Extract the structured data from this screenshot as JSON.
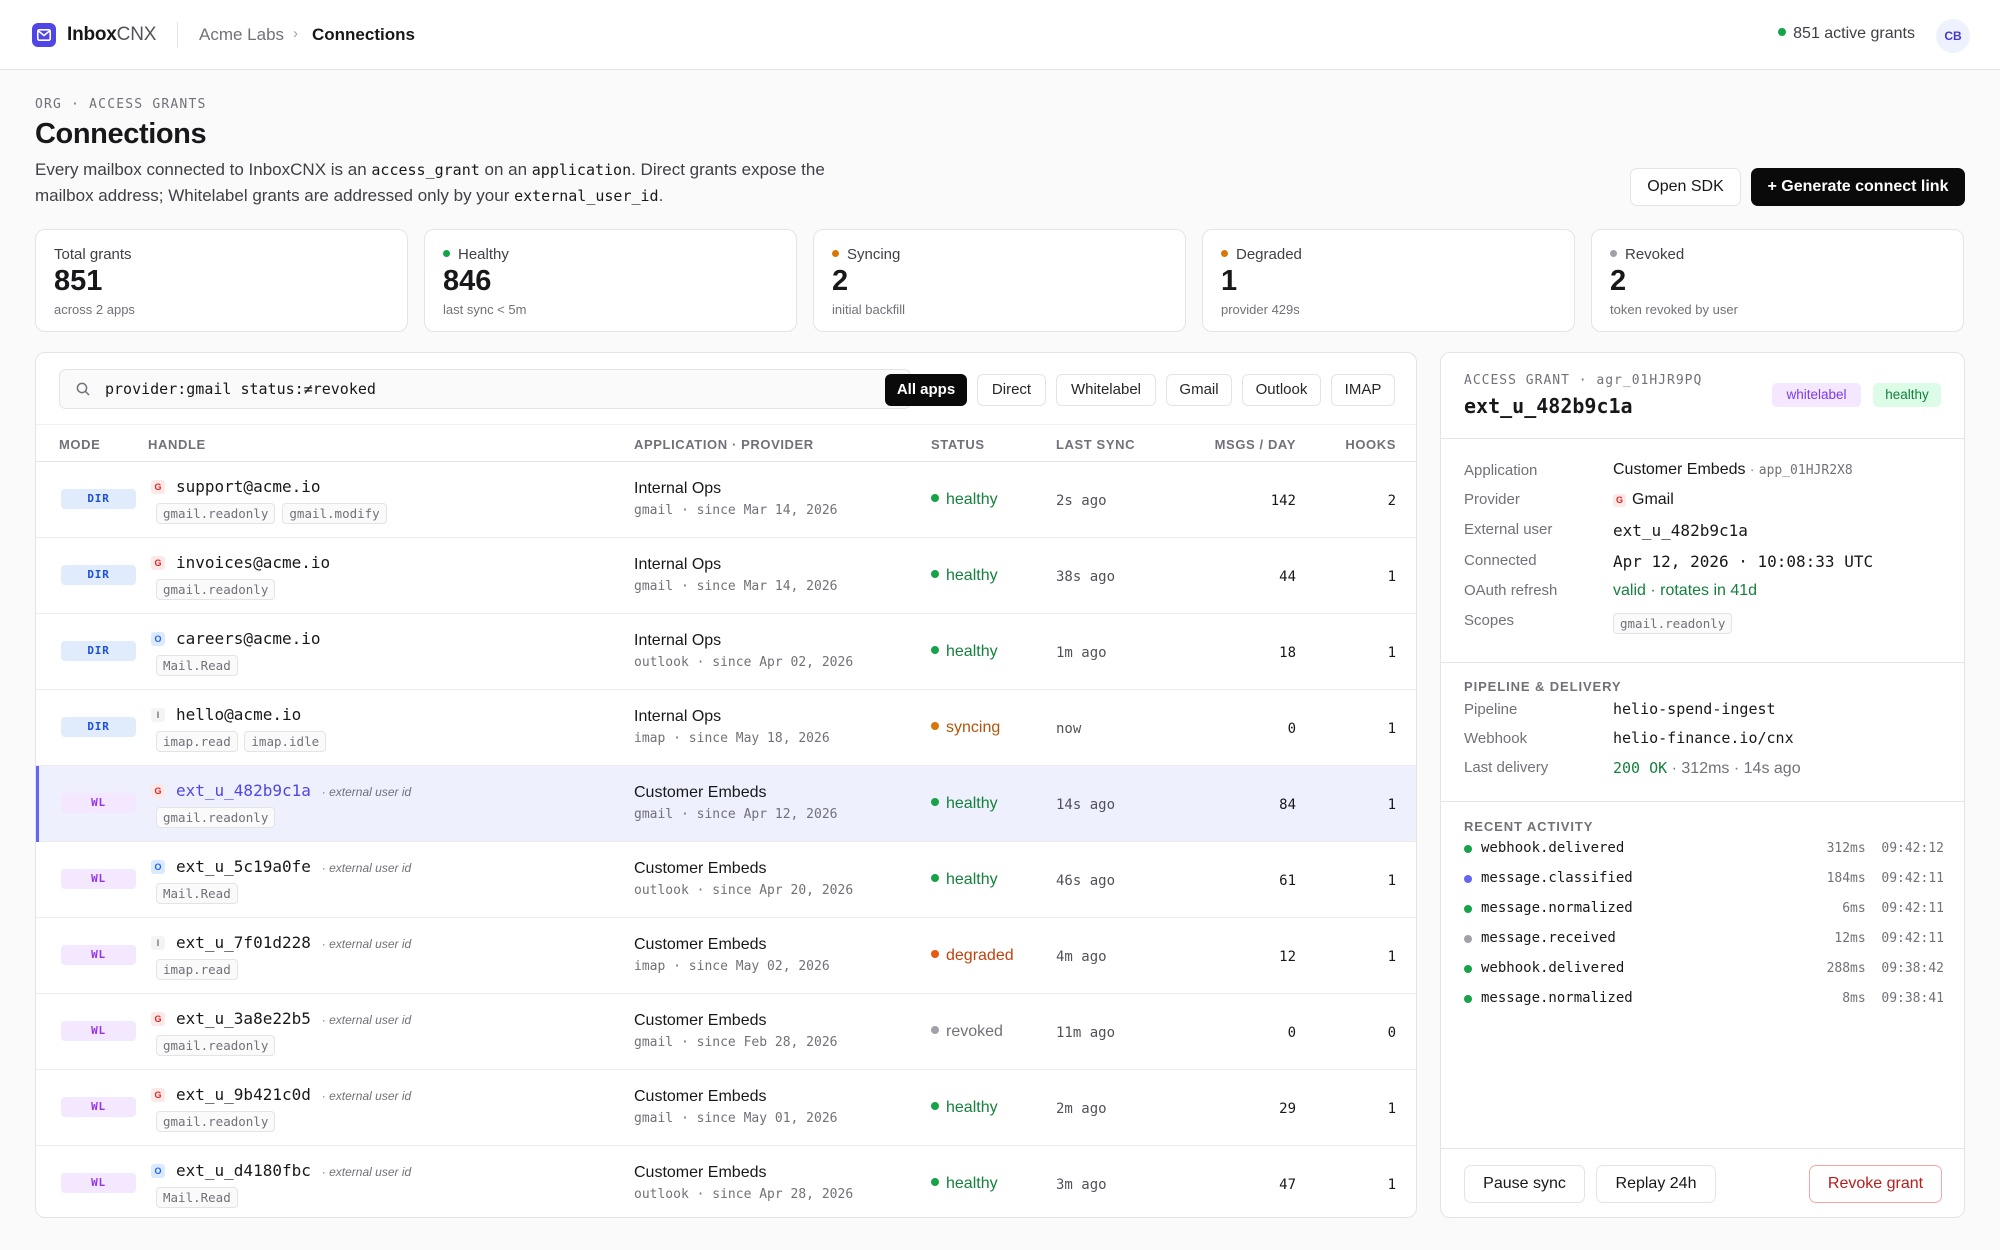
{
  "topbar": {
    "brand_bold": "Inbox",
    "brand_light": "CNX",
    "org": "Acme Labs",
    "current": "Connections",
    "active_grants": "851 active grants",
    "avatar": "CB"
  },
  "header": {
    "eyebrow": "ORG · ACCESS GRANTS",
    "title": "Connections",
    "desc_1": "Every mailbox connected to InboxCNX is an ",
    "desc_code_1": "access_grant",
    "desc_2": " on an ",
    "desc_code_2": "application",
    "desc_3": ". Direct grants expose the mailbox address; Whitelabel grants are addressed only by your ",
    "desc_code_3": "external_user_id",
    "desc_4": ".",
    "open_sdk": "Open SDK",
    "generate": "+ Generate connect link"
  },
  "stats": [
    {
      "label": "Total grants",
      "value": "851",
      "sub": "across 2 apps",
      "dot": ""
    },
    {
      "label": "Healthy",
      "value": "846",
      "sub": "last sync < 5m",
      "dot": "#16a34a"
    },
    {
      "label": "Syncing",
      "value": "2",
      "sub": "initial backfill",
      "dot": "#d97706"
    },
    {
      "label": "Degraded",
      "value": "1",
      "sub": "provider 429s",
      "dot": "#d97706"
    },
    {
      "label": "Revoked",
      "value": "2",
      "sub": "token revoked by user",
      "dot": "#a1a1aa"
    }
  ],
  "search": {
    "query": "provider:gmail status:≠revoked"
  },
  "filters": [
    "All apps",
    "Direct",
    "Whitelabel",
    "Gmail",
    "Outlook",
    "IMAP"
  ],
  "columns": [
    "MODE",
    "HANDLE",
    "APPLICATION · PROVIDER",
    "STATUS",
    "LAST SYNC",
    "MSGS / DAY",
    "HOOKS"
  ],
  "rows": [
    {
      "mode": "DIR",
      "prov": "G",
      "handle": "support@acme.io",
      "ext": "",
      "scopes": [
        "gmail.readonly",
        "gmail.modify"
      ],
      "app": "Internal Ops",
      "app_sub": "gmail · since Mar 14, 2026",
      "status": "healthy",
      "last_sync": "2s ago",
      "msgs": "142",
      "hooks": "2"
    },
    {
      "mode": "DIR",
      "prov": "G",
      "handle": "invoices@acme.io",
      "ext": "",
      "scopes": [
        "gmail.readonly"
      ],
      "app": "Internal Ops",
      "app_sub": "gmail · since Mar 14, 2026",
      "status": "healthy",
      "last_sync": "38s ago",
      "msgs": "44",
      "hooks": "1"
    },
    {
      "mode": "DIR",
      "prov": "O",
      "handle": "careers@acme.io",
      "ext": "",
      "scopes": [
        "Mail.Read"
      ],
      "app": "Internal Ops",
      "app_sub": "outlook · since Apr 02, 2026",
      "status": "healthy",
      "last_sync": "1m ago",
      "msgs": "18",
      "hooks": "1"
    },
    {
      "mode": "DIR",
      "prov": "I",
      "handle": "hello@acme.io",
      "ext": "",
      "scopes": [
        "imap.read",
        "imap.idle"
      ],
      "app": "Internal Ops",
      "app_sub": "imap · since May 18, 2026",
      "status": "syncing",
      "last_sync": "now",
      "msgs": "0",
      "hooks": "1"
    },
    {
      "mode": "WL",
      "prov": "G",
      "handle": "ext_u_482b9c1a",
      "ext": "· external user id",
      "scopes": [
        "gmail.readonly"
      ],
      "app": "Customer Embeds",
      "app_sub": "gmail · since Apr 12, 2026",
      "status": "healthy",
      "last_sync": "14s ago",
      "msgs": "84",
      "hooks": "1",
      "selected": true
    },
    {
      "mode": "WL",
      "prov": "O",
      "handle": "ext_u_5c19a0fe",
      "ext": "· external user id",
      "scopes": [
        "Mail.Read"
      ],
      "app": "Customer Embeds",
      "app_sub": "outlook · since Apr 20, 2026",
      "status": "healthy",
      "last_sync": "46s ago",
      "msgs": "61",
      "hooks": "1"
    },
    {
      "mode": "WL",
      "prov": "I",
      "handle": "ext_u_7f01d228",
      "ext": "· external user id",
      "scopes": [
        "imap.read"
      ],
      "app": "Customer Embeds",
      "app_sub": "imap · since May 02, 2026",
      "status": "degraded",
      "last_sync": "4m ago",
      "msgs": "12",
      "hooks": "1"
    },
    {
      "mode": "WL",
      "prov": "G",
      "handle": "ext_u_3a8e22b5",
      "ext": "· external user id",
      "scopes": [
        "gmail.readonly"
      ],
      "app": "Customer Embeds",
      "app_sub": "gmail · since Feb 28, 2026",
      "status": "revoked",
      "last_sync": "11m ago",
      "msgs": "0",
      "hooks": "0"
    },
    {
      "mode": "WL",
      "prov": "G",
      "handle": "ext_u_9b421c0d",
      "ext": "· external user id",
      "scopes": [
        "gmail.readonly"
      ],
      "app": "Customer Embeds",
      "app_sub": "gmail · since May 01, 2026",
      "status": "healthy",
      "last_sync": "2m ago",
      "msgs": "29",
      "hooks": "1"
    },
    {
      "mode": "WL",
      "prov": "O",
      "handle": "ext_u_d4180fbc",
      "ext": "· external user id",
      "scopes": [
        "Mail.Read"
      ],
      "app": "Customer Embeds",
      "app_sub": "outlook · since Apr 28, 2026",
      "status": "healthy",
      "last_sync": "3m ago",
      "msgs": "47",
      "hooks": "1"
    }
  ],
  "panel": {
    "eyebrow": "ACCESS GRANT · agr_01HJR9PQ",
    "title": "ext_u_482b9c1a",
    "tag_mode": "whitelabel",
    "tag_status": "healthy",
    "application_label": "Application",
    "application": "Customer Embeds",
    "application_id": "app_01HJR2X8",
    "provider_label": "Provider",
    "provider": "Gmail",
    "external_user_label": "External user",
    "external_user": "ext_u_482b9c1a",
    "connected_label": "Connected",
    "connected": "Apr 12, 2026 · 10:08:33 UTC",
    "oauth_label": "OAuth refresh",
    "oauth": "valid · rotates in 41d",
    "scopes_label": "Scopes",
    "scope": "gmail.readonly",
    "pipeline_header": "PIPELINE & DELIVERY",
    "pipeline_label": "Pipeline",
    "pipeline": "helio-spend-ingest",
    "webhook_label": "Webhook",
    "webhook": "helio-finance.io/cnx",
    "last_delivery_label": "Last delivery",
    "last_delivery_code": "200 OK",
    "last_delivery_rest": " · 312ms · 14s ago",
    "activity_header": "RECENT ACTIVITY",
    "activity": [
      {
        "event": "webhook.delivered",
        "dur": "312ms",
        "time": "09:42:12",
        "color": "#16a34a"
      },
      {
        "event": "message.classified",
        "dur": "184ms",
        "time": "09:42:11",
        "color": "#6366f1"
      },
      {
        "event": "message.normalized",
        "dur": "6ms",
        "time": "09:42:11",
        "color": "#16a34a"
      },
      {
        "event": "message.received",
        "dur": "12ms",
        "time": "09:42:11",
        "color": "#a1a1aa"
      },
      {
        "event": "webhook.delivered",
        "dur": "288ms",
        "time": "09:38:42",
        "color": "#16a34a"
      },
      {
        "event": "message.normalized",
        "dur": "8ms",
        "time": "09:38:41",
        "color": "#16a34a"
      }
    ],
    "pause": "Pause sync",
    "replay": "Replay 24h",
    "revoke": "Revoke grant"
  }
}
